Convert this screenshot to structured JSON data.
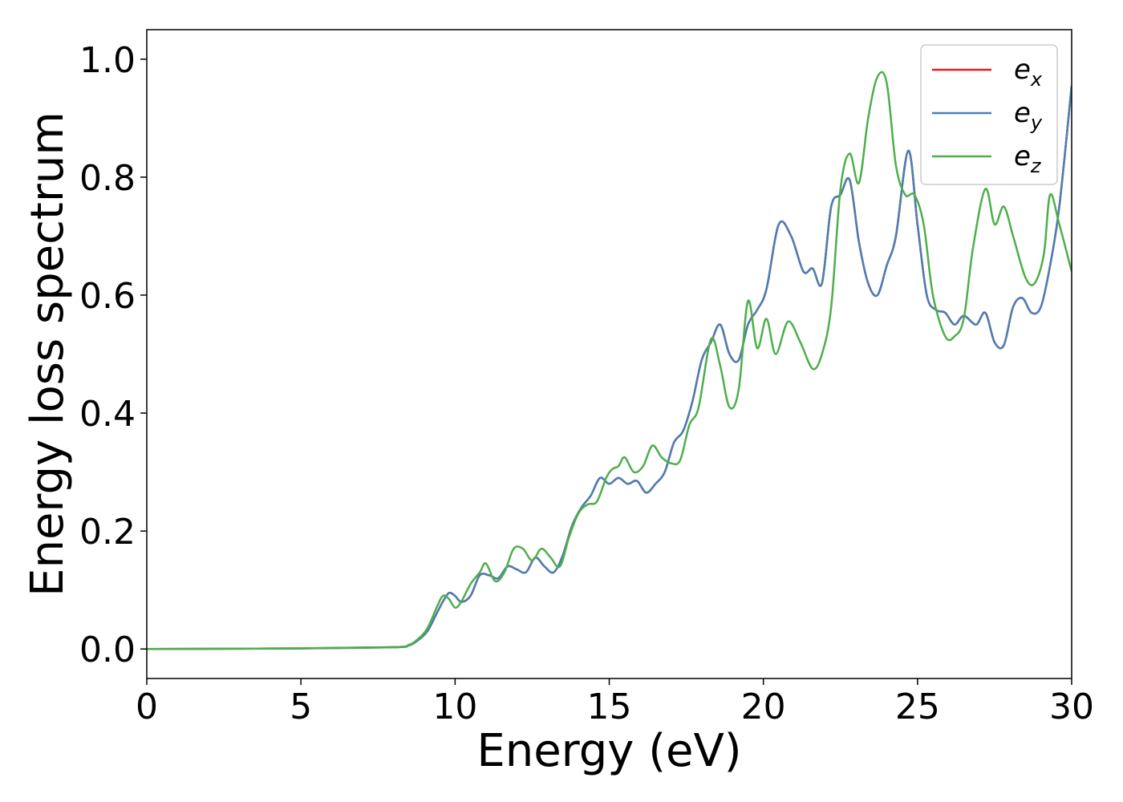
{
  "chart_data": {
    "type": "line",
    "title": "",
    "xlabel": "Energy (eV)",
    "ylabel": "Energy loss spectrum",
    "xlim": [
      0,
      30
    ],
    "ylim": [
      -0.05,
      1.05
    ],
    "xticks": [
      0,
      5,
      10,
      15,
      20,
      25,
      30
    ],
    "yticks": [
      0.0,
      0.2,
      0.4,
      0.6,
      0.8,
      1.0
    ],
    "ytick_labels": [
      "0.0",
      "0.2",
      "0.4",
      "0.6",
      "0.8",
      "1.0"
    ],
    "grid": false,
    "legend_position": "top-right",
    "series": [
      {
        "name": "e_x",
        "legend_base": "e",
        "legend_sub": "x",
        "color": "#e41a1c",
        "x": [
          0,
          5,
          8,
          8.5,
          8.8,
          9.1,
          9.4,
          9.6,
          9.8,
          10.0,
          10.2,
          10.5,
          10.8,
          11.1,
          11.4,
          11.7,
          12.0,
          12.3,
          12.6,
          12.9,
          13.2,
          13.5,
          13.8,
          14.1,
          14.4,
          14.7,
          15.0,
          15.3,
          15.6,
          15.9,
          16.2,
          16.5,
          16.8,
          17.1,
          17.4,
          17.7,
          18.0,
          18.3,
          18.6,
          18.9,
          19.2,
          19.5,
          19.8,
          20.1,
          20.5,
          20.9,
          21.3,
          21.6,
          21.9,
          22.2,
          22.5,
          22.8,
          23.1,
          23.4,
          23.7,
          24.0,
          24.3,
          24.7,
          25.0,
          25.3,
          25.6,
          25.9,
          26.2,
          26.5,
          26.9,
          27.2,
          27.5,
          27.8,
          28.1,
          28.4,
          28.7,
          29.0,
          29.3,
          29.6,
          30.0
        ],
        "y": [
          0.0,
          0.001,
          0.003,
          0.006,
          0.015,
          0.03,
          0.06,
          0.08,
          0.095,
          0.09,
          0.08,
          0.09,
          0.125,
          0.125,
          0.12,
          0.14,
          0.135,
          0.13,
          0.155,
          0.14,
          0.13,
          0.16,
          0.21,
          0.24,
          0.26,
          0.29,
          0.28,
          0.29,
          0.28,
          0.285,
          0.265,
          0.28,
          0.3,
          0.35,
          0.37,
          0.42,
          0.49,
          0.52,
          0.55,
          0.5,
          0.49,
          0.55,
          0.575,
          0.61,
          0.72,
          0.7,
          0.64,
          0.645,
          0.62,
          0.75,
          0.77,
          0.795,
          0.69,
          0.62,
          0.6,
          0.65,
          0.7,
          0.845,
          0.72,
          0.6,
          0.575,
          0.57,
          0.55,
          0.565,
          0.55,
          0.57,
          0.52,
          0.515,
          0.58,
          0.595,
          0.57,
          0.58,
          0.65,
          0.75,
          0.955
        ]
      },
      {
        "name": "e_y",
        "legend_base": "e",
        "legend_sub": "y",
        "color": "#4a7fb5",
        "x": [
          0,
          5,
          8,
          8.5,
          8.8,
          9.1,
          9.4,
          9.6,
          9.8,
          10.0,
          10.2,
          10.5,
          10.8,
          11.1,
          11.4,
          11.7,
          12.0,
          12.3,
          12.6,
          12.9,
          13.2,
          13.5,
          13.8,
          14.1,
          14.4,
          14.7,
          15.0,
          15.3,
          15.6,
          15.9,
          16.2,
          16.5,
          16.8,
          17.1,
          17.4,
          17.7,
          18.0,
          18.3,
          18.6,
          18.9,
          19.2,
          19.5,
          19.8,
          20.1,
          20.5,
          20.9,
          21.3,
          21.6,
          21.9,
          22.2,
          22.5,
          22.8,
          23.1,
          23.4,
          23.7,
          24.0,
          24.3,
          24.7,
          25.0,
          25.3,
          25.6,
          25.9,
          26.2,
          26.5,
          26.9,
          27.2,
          27.5,
          27.8,
          28.1,
          28.4,
          28.7,
          29.0,
          29.3,
          29.6,
          30.0
        ],
        "y": [
          0.0,
          0.001,
          0.003,
          0.006,
          0.015,
          0.03,
          0.06,
          0.08,
          0.095,
          0.09,
          0.08,
          0.09,
          0.125,
          0.125,
          0.12,
          0.14,
          0.135,
          0.13,
          0.155,
          0.14,
          0.13,
          0.16,
          0.21,
          0.24,
          0.26,
          0.29,
          0.28,
          0.29,
          0.28,
          0.285,
          0.265,
          0.28,
          0.3,
          0.35,
          0.37,
          0.42,
          0.49,
          0.52,
          0.55,
          0.5,
          0.49,
          0.55,
          0.575,
          0.61,
          0.72,
          0.7,
          0.64,
          0.645,
          0.62,
          0.75,
          0.77,
          0.795,
          0.69,
          0.62,
          0.6,
          0.65,
          0.7,
          0.845,
          0.72,
          0.6,
          0.575,
          0.57,
          0.55,
          0.565,
          0.55,
          0.57,
          0.52,
          0.515,
          0.58,
          0.595,
          0.57,
          0.58,
          0.65,
          0.75,
          0.955
        ]
      },
      {
        "name": "e_z",
        "legend_base": "e",
        "legend_sub": "z",
        "color": "#4daf4a",
        "x": [
          0,
          5,
          8,
          8.5,
          8.8,
          9.1,
          9.4,
          9.6,
          9.8,
          10.0,
          10.2,
          10.5,
          10.8,
          11.0,
          11.3,
          11.6,
          11.9,
          12.2,
          12.5,
          12.8,
          13.1,
          13.4,
          13.7,
          14.0,
          14.3,
          14.6,
          14.9,
          15.1,
          15.3,
          15.5,
          15.8,
          16.1,
          16.4,
          16.7,
          17.0,
          17.3,
          17.6,
          17.9,
          18.3,
          18.6,
          18.9,
          19.2,
          19.5,
          19.8,
          20.1,
          20.4,
          20.8,
          21.2,
          21.6,
          21.9,
          22.2,
          22.5,
          22.8,
          23.1,
          23.4,
          23.7,
          24.0,
          24.3,
          24.6,
          24.9,
          25.2,
          25.5,
          25.9,
          26.2,
          26.5,
          26.8,
          27.2,
          27.5,
          27.8,
          28.1,
          28.5,
          28.8,
          29.1,
          29.3,
          29.6,
          30.0
        ],
        "y": [
          0.0,
          0.001,
          0.003,
          0.007,
          0.017,
          0.035,
          0.07,
          0.09,
          0.085,
          0.07,
          0.08,
          0.11,
          0.13,
          0.145,
          0.115,
          0.13,
          0.17,
          0.17,
          0.15,
          0.17,
          0.155,
          0.14,
          0.19,
          0.23,
          0.245,
          0.25,
          0.29,
          0.305,
          0.31,
          0.325,
          0.3,
          0.31,
          0.345,
          0.325,
          0.315,
          0.32,
          0.38,
          0.41,
          0.525,
          0.48,
          0.41,
          0.44,
          0.59,
          0.51,
          0.56,
          0.5,
          0.555,
          0.52,
          0.475,
          0.5,
          0.58,
          0.78,
          0.84,
          0.79,
          0.9,
          0.97,
          0.96,
          0.82,
          0.77,
          0.77,
          0.72,
          0.6,
          0.53,
          0.53,
          0.56,
          0.68,
          0.78,
          0.72,
          0.75,
          0.7,
          0.63,
          0.62,
          0.67,
          0.77,
          0.72,
          0.64
        ]
      }
    ]
  }
}
